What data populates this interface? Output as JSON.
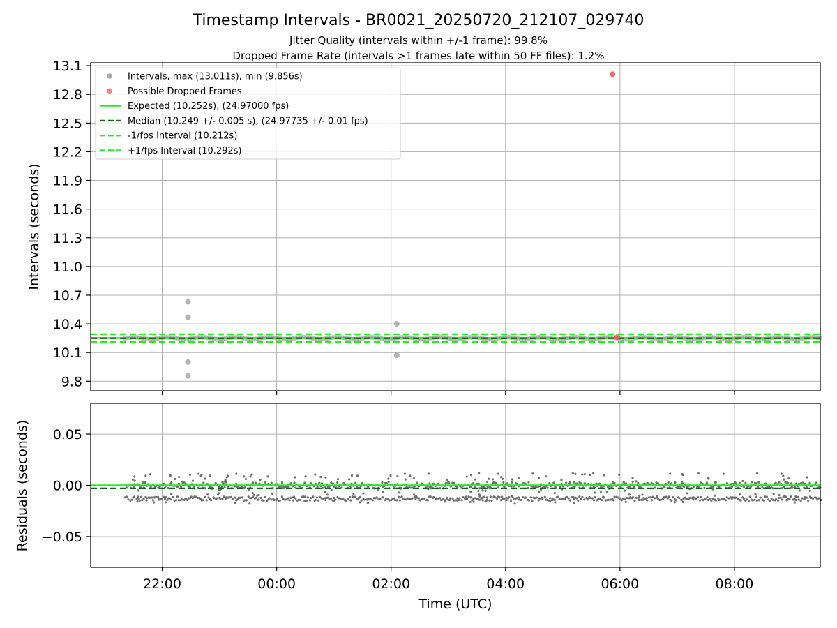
{
  "chart_data": {
    "type": "scatter",
    "title": "Timestamp Intervals - BR0021_20250720_212107_029740",
    "subtitles": [
      "Jitter Quality (intervals within +/-1 frame): 99.8%",
      "Dropped Frame Rate (intervals >1 frames late within 50 FF files): 1.2%"
    ],
    "xlabel": "Time (UTC)",
    "x_ticks": [
      "22:00",
      "00:00",
      "02:00",
      "04:00",
      "06:00",
      "08:00"
    ],
    "x_range_hours": [
      20.75,
      33.5
    ],
    "grid": true,
    "legend_position": "upper-left",
    "top_panel": {
      "ylabel": "Intervals (seconds)",
      "ylim": [
        9.7,
        13.13
      ],
      "y_ticks": [
        "9.8",
        "10.1",
        "10.4",
        "10.7",
        "11.0",
        "11.3",
        "11.6",
        "11.9",
        "12.2",
        "12.5",
        "12.8",
        "13.1"
      ],
      "legend": [
        {
          "label": "Intervals, max (13.011s), min (9.856s)",
          "kind": "dot",
          "color": "#999999"
        },
        {
          "label": "Possible Dropped Frames",
          "kind": "dot",
          "color": "#f07070"
        },
        {
          "label": "Expected (10.252s), (24.97000 fps)",
          "kind": "solid",
          "color": "#22ee22"
        },
        {
          "label": "Median (10.249 +/- 0.005 s), (24.97735 +/- 0.01 fps)",
          "kind": "dashed",
          "color": "#116611"
        },
        {
          "label": "-1/fps Interval (10.212s)",
          "kind": "dashed",
          "color": "#22ee22"
        },
        {
          "label": "+1/fps Interval (10.292s)",
          "kind": "dashed",
          "color": "#22ee22"
        }
      ],
      "expected": 10.252,
      "median": 10.249,
      "minus_interval": 10.212,
      "plus_interval": 10.292,
      "outliers": [
        {
          "x": 22.45,
          "y": 10.63
        },
        {
          "x": 22.45,
          "y": 10.47
        },
        {
          "x": 22.45,
          "y": 10.0
        },
        {
          "x": 22.45,
          "y": 9.856
        },
        {
          "x": 26.1,
          "y": 10.4
        },
        {
          "x": 26.1,
          "y": 10.07
        }
      ],
      "dropped": [
        {
          "x": 29.87,
          "y": 13.011
        },
        {
          "x": 29.95,
          "y": 10.26
        }
      ],
      "band_x_range": [
        21.35,
        33.5
      ],
      "band_center": 10.25
    },
    "bottom_panel": {
      "ylabel": "Residuals (seconds)",
      "ylim": [
        -0.08,
        0.08
      ],
      "y_ticks": [
        "0.05",
        "0.00",
        "−0.05"
      ],
      "y_tick_values": [
        0.05,
        0.0,
        -0.05
      ],
      "expected_line": 0.0,
      "median_line": -0.003,
      "residual_bands": [
        0.0,
        -0.013
      ],
      "residual_x_range": [
        21.35,
        33.5
      ]
    }
  }
}
